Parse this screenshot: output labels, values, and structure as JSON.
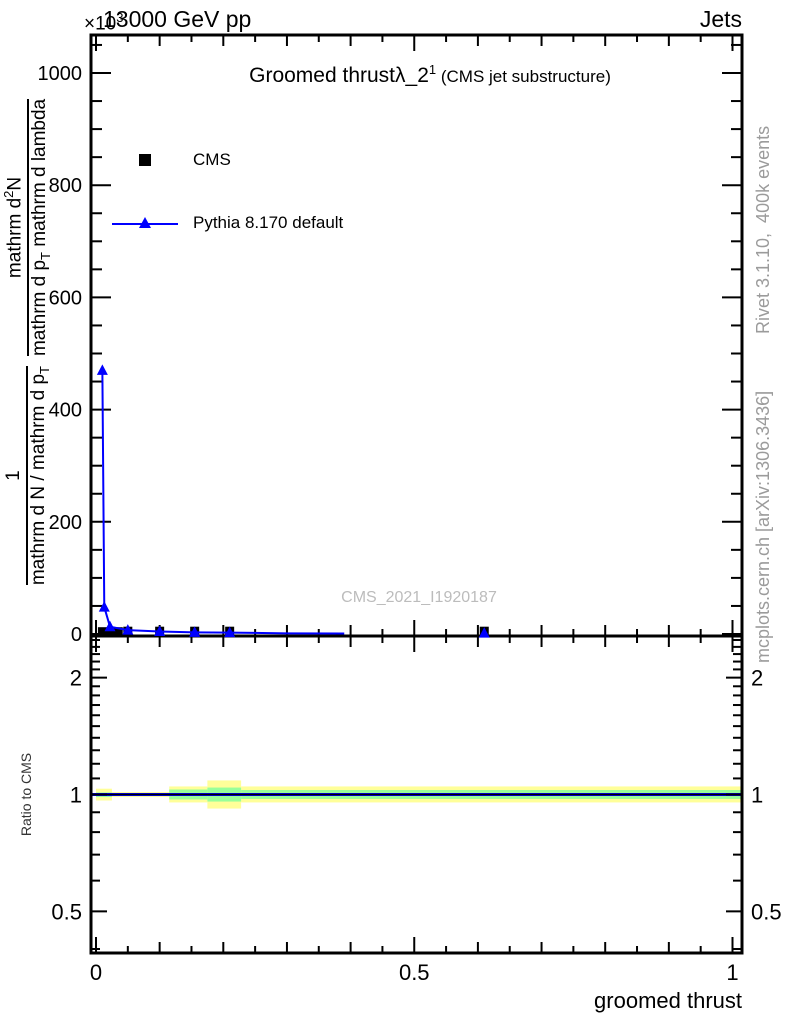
{
  "header": {
    "exponent": "×10",
    "exponent_sup": "3",
    "beam": "13000 GeV pp",
    "right": "Jets"
  },
  "title": {
    "main": "Groomed thrust",
    "observable": "λ_2",
    "observable_sup": "1",
    "paren": " (CMS jet substructure)"
  },
  "legend": {
    "items": [
      {
        "label": "CMS",
        "marker": "black-square"
      },
      {
        "label": "Pythia 8.170 default",
        "marker": "blue-line-triangle"
      }
    ]
  },
  "watermark": "CMS_2021_I1920187",
  "side_notes": {
    "top": "Rivet 3.1.10,  400k events",
    "bottom": "mcplots.cern.ch [arXiv:1306.3436]"
  },
  "axes": {
    "x_label": "groomed thrust",
    "ratio_label": "Ratio to CMS",
    "y_label": {
      "f1_num": "1",
      "f1_den_main": "mathrm d N / mathrm d p",
      "f1_den_sub": "T",
      "f2_num_a": "mathrm d",
      "f2_num_sup": "2",
      "f2_num_b": "N",
      "f2_den_a": "mathrm d p",
      "f2_den_sub": "T",
      "f2_den_b": " mathrm d lambda"
    }
  },
  "colors": {
    "mc_line": "#0000ff",
    "data_marker": "#000000",
    "band_yellow": "#ffff99",
    "band_green": "#99ff99",
    "frame": "#000000",
    "gray_text": "#9b9b9b",
    "watermark_gray": "#bcbcbc"
  },
  "chart_data": {
    "type": "line",
    "title": "Groomed thrust λ_2^1 (CMS jet substructure)",
    "xlabel": "groomed thrust",
    "ylabel": "1/(dN/dp_T) d²N/(dp_T dλ)  [×10³]",
    "xlim": [
      -0.008,
      1.015
    ],
    "xticks": {
      "major": [
        0,
        0.5,
        1
      ],
      "labels": [
        "0",
        "0.5",
        "1"
      ],
      "medium_step": 0.1,
      "minor_step": 0.05
    },
    "top_panel": {
      "ylim": [
        0,
        1068
      ],
      "yticks": [
        0,
        200,
        400,
        600,
        800,
        1000
      ],
      "ytick_labels": [
        "0",
        "200",
        "400",
        "600",
        "800",
        "1000"
      ],
      "ytick_minor_step": 50,
      "units": "×10³ events",
      "series": [
        {
          "name": "CMS",
          "type": "scatter",
          "marker": "square",
          "color": "#000000",
          "merged_band": {
            "x1": 0.003,
            "x2": 0.042,
            "y": 5
          },
          "points": [
            [
              0.05,
              5
            ],
            [
              0.1,
              5
            ],
            [
              0.155,
              5
            ],
            [
              0.21,
              5
            ],
            [
              0.61,
              5
            ]
          ]
        },
        {
          "name": "Pythia 8.170 default",
          "type": "line",
          "marker": "triangle",
          "color": "#0000ff",
          "line": [
            [
              0.01,
              470
            ],
            [
              0.013,
              48
            ],
            [
              0.022,
              13
            ],
            [
              0.05,
              7
            ],
            [
              0.1,
              4.5
            ],
            [
              0.155,
              3
            ],
            [
              0.21,
              2.5
            ],
            [
              0.3,
              1.2
            ],
            [
              0.39,
              1
            ]
          ],
          "markers": [
            [
              0.01,
              470
            ],
            [
              0.013,
              48
            ],
            [
              0.022,
              13
            ],
            [
              0.05,
              7
            ],
            [
              0.1,
              4.5
            ],
            [
              0.155,
              3
            ],
            [
              0.21,
              2.5
            ],
            [
              0.61,
              1.5
            ]
          ]
        }
      ]
    },
    "ratio_panel": {
      "yscale": "log",
      "ylim": [
        0.39,
        2.56
      ],
      "yticks": [
        0.5,
        1,
        2
      ],
      "ytick_labels": [
        "0.5",
        "1",
        "2"
      ],
      "minor_ticks": [
        0.4,
        0.6,
        0.7,
        0.8,
        0.9,
        1.1,
        1.2,
        1.3,
        1.4,
        1.5,
        1.6,
        1.7,
        1.8,
        1.9,
        2.1,
        2.2,
        2.3,
        2.4,
        2.5
      ],
      "center_line": 1,
      "mc_ratio_line": 1,
      "bands": [
        {
          "x": [
            0.0,
            0.025
          ],
          "yellow": [
            0.965,
            1.035
          ],
          "green": [
            0.985,
            1.012
          ]
        },
        {
          "x": [
            0.025,
            0.115
          ],
          "yellow": [
            0.985,
            1.015
          ],
          "green": [
            0.992,
            1.008
          ]
        },
        {
          "x": [
            0.115,
            0.175
          ],
          "yellow": [
            0.954,
            1.049
          ],
          "green": [
            0.971,
            1.03
          ]
        },
        {
          "x": [
            0.175,
            0.228
          ],
          "yellow": [
            0.92,
            1.087
          ],
          "green": [
            0.959,
            1.042
          ]
        },
        {
          "x": [
            0.228,
            1.015
          ],
          "yellow": [
            0.954,
            1.049
          ],
          "green": [
            0.974,
            1.027
          ]
        }
      ]
    }
  }
}
